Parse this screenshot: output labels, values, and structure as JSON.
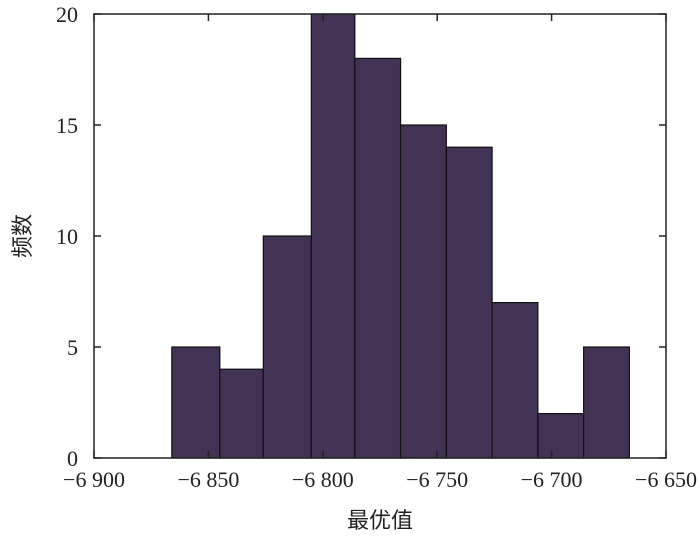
{
  "chart_data": {
    "type": "histogram",
    "xlabel": "最优值",
    "ylabel": "频数",
    "xlim": [
      -6900,
      -6650
    ],
    "ylim": [
      0,
      20
    ],
    "xticks": [
      {
        "value": -6900,
        "label": "−6 900"
      },
      {
        "value": -6850,
        "label": "−6 850"
      },
      {
        "value": -6800,
        "label": "−6 800"
      },
      {
        "value": -6750,
        "label": "−6 750"
      },
      {
        "value": -6700,
        "label": "−6 700"
      },
      {
        "value": -6650,
        "label": "−6 650"
      }
    ],
    "yticks": [
      {
        "value": 0,
        "label": "0"
      },
      {
        "value": 5,
        "label": "5"
      },
      {
        "value": 10,
        "label": "10"
      },
      {
        "value": 15,
        "label": "15"
      },
      {
        "value": 20,
        "label": "20"
      }
    ],
    "bins": [
      {
        "start": -6866,
        "end": -6845,
        "count": 5
      },
      {
        "start": -6845,
        "end": -6826,
        "count": 4
      },
      {
        "start": -6826,
        "end": -6805,
        "count": 10
      },
      {
        "start": -6805,
        "end": -6786,
        "count": 20
      },
      {
        "start": -6786,
        "end": -6766,
        "count": 18
      },
      {
        "start": -6766,
        "end": -6746,
        "count": 15
      },
      {
        "start": -6746,
        "end": -6726,
        "count": 14
      },
      {
        "start": -6726,
        "end": -6706,
        "count": 7
      },
      {
        "start": -6706,
        "end": -6686,
        "count": 2
      },
      {
        "start": -6686,
        "end": -6666,
        "count": 5
      }
    ],
    "bar_color": "#423355",
    "grid": false
  }
}
